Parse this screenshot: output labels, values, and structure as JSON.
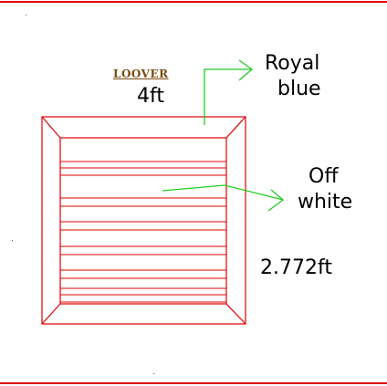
{
  "diagram": {
    "title": "LOOVER",
    "width_label": "4ft",
    "height_label": "2.772ft",
    "frame_color_label": [
      "Royal",
      "blue"
    ],
    "slat_color_label": [
      "Off",
      "white"
    ],
    "colors": {
      "frame_outline": "#e00000",
      "arrow": "#22cc22",
      "border": "#e00000",
      "title": "#7a4a10"
    },
    "slat_count": 6
  }
}
